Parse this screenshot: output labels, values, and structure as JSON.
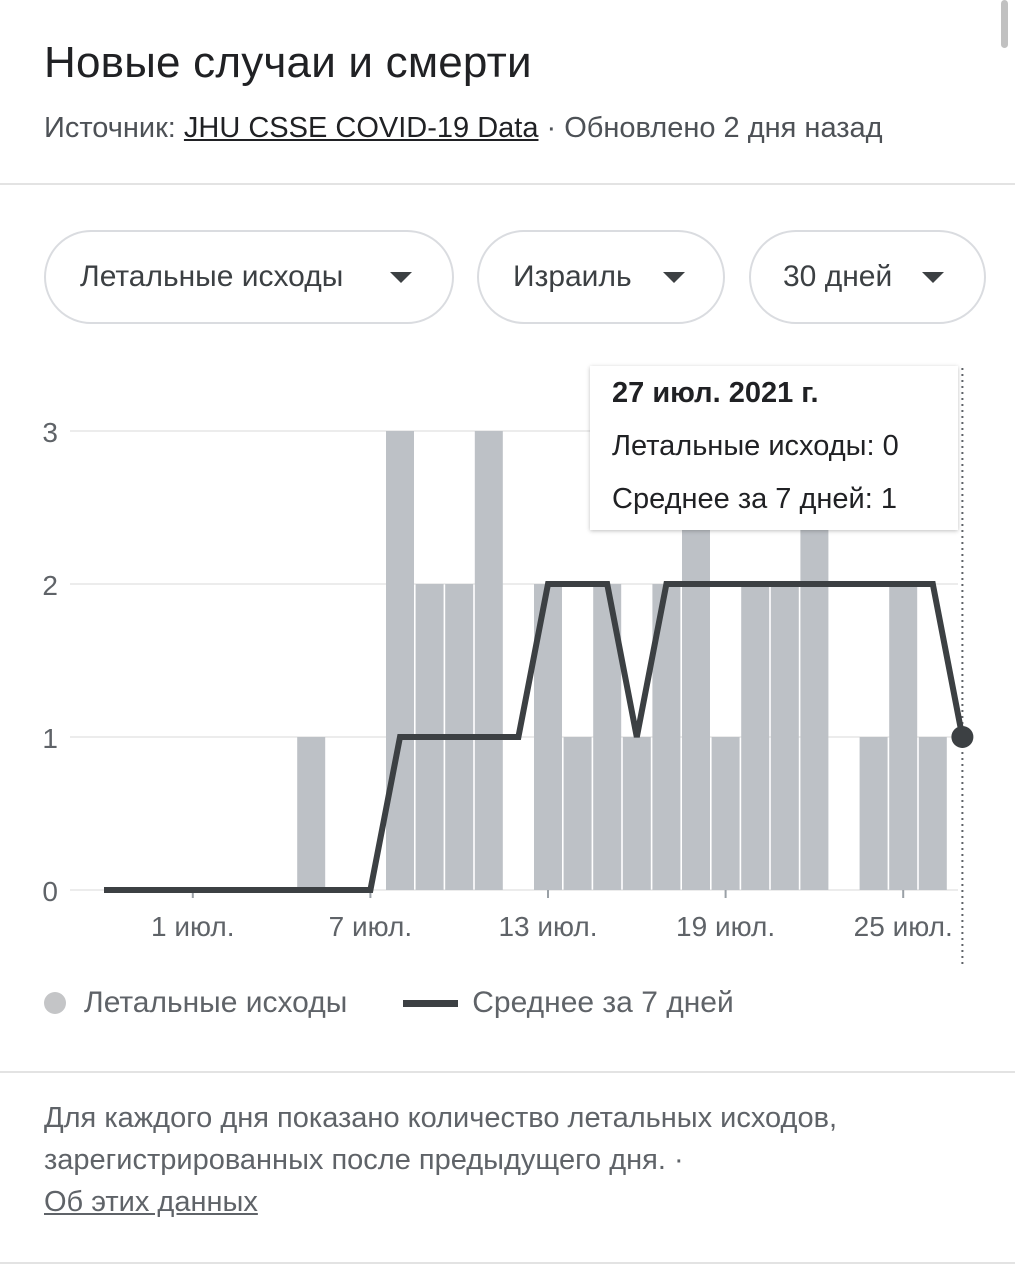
{
  "header": {
    "title": "Новые случаи и смерти",
    "source_prefix": "Источник: ",
    "source_link": "JHU CSSE COVID-19 Data",
    "updated": " · Обновлено 2 дня назад"
  },
  "filters": {
    "metric": "Летальные исходы",
    "country": "Израиль",
    "period": "30 дней"
  },
  "tooltip": {
    "date": "27 июл. 2021 г.",
    "deaths_label": "Летальные исходы: 0",
    "avg_label": "Среднее за 7 дней: 1"
  },
  "legend": {
    "bars": "Летальные исходы",
    "line": "Среднее за 7 дней"
  },
  "note": {
    "text": "Для каждого дня показано количество летальных исходов, зарегистрированных после предыдущего дня.  · ",
    "link": "Об этих данных"
  },
  "chart_data": {
    "type": "bar",
    "x_dates": [
      "28 июн.",
      "29 июн.",
      "30 июн.",
      "1 июл.",
      "2 июл.",
      "3 июл.",
      "4 июл.",
      "5 июл.",
      "6 июл.",
      "7 июл.",
      "8 июл.",
      "9 июл.",
      "10 июл.",
      "11 июл.",
      "12 июл.",
      "13 июл.",
      "14 июл.",
      "15 июл.",
      "16 июл.",
      "17 июл.",
      "18 июл.",
      "19 июл.",
      "20 июл.",
      "21 июл.",
      "22 июл.",
      "23 июл.",
      "24 июл.",
      "25 июл.",
      "26 июл.",
      "27 июл."
    ],
    "series": [
      {
        "name": "Летальные исходы",
        "type": "bar",
        "color": "#bdc1c6",
        "values": [
          0,
          0,
          0,
          0,
          0,
          0,
          0,
          1,
          0,
          0,
          3,
          2,
          2,
          3,
          0,
          2,
          1,
          2,
          1,
          2,
          3,
          1,
          2,
          2,
          3,
          0,
          1,
          2,
          1,
          0
        ]
      },
      {
        "name": "Среднее за 7 дней",
        "type": "line",
        "color": "#3c4043",
        "values": [
          0,
          0,
          0,
          0,
          0,
          0,
          0,
          0,
          0,
          0,
          1,
          1,
          1,
          1,
          1,
          2,
          2,
          2,
          1,
          2,
          2,
          2,
          2,
          2,
          2,
          2,
          2,
          2,
          2,
          1
        ]
      }
    ],
    "x_tick_labels": [
      "1 июл.",
      "7 июл.",
      "13 июл.",
      "19 июл.",
      "25 июл."
    ],
    "x_tick_indices": [
      3,
      9,
      15,
      21,
      27
    ],
    "y_ticks": [
      0,
      1,
      2,
      3
    ],
    "ylim": [
      0,
      3
    ],
    "grid": true,
    "legend_position": "bottom",
    "highlighted_index": 29
  }
}
